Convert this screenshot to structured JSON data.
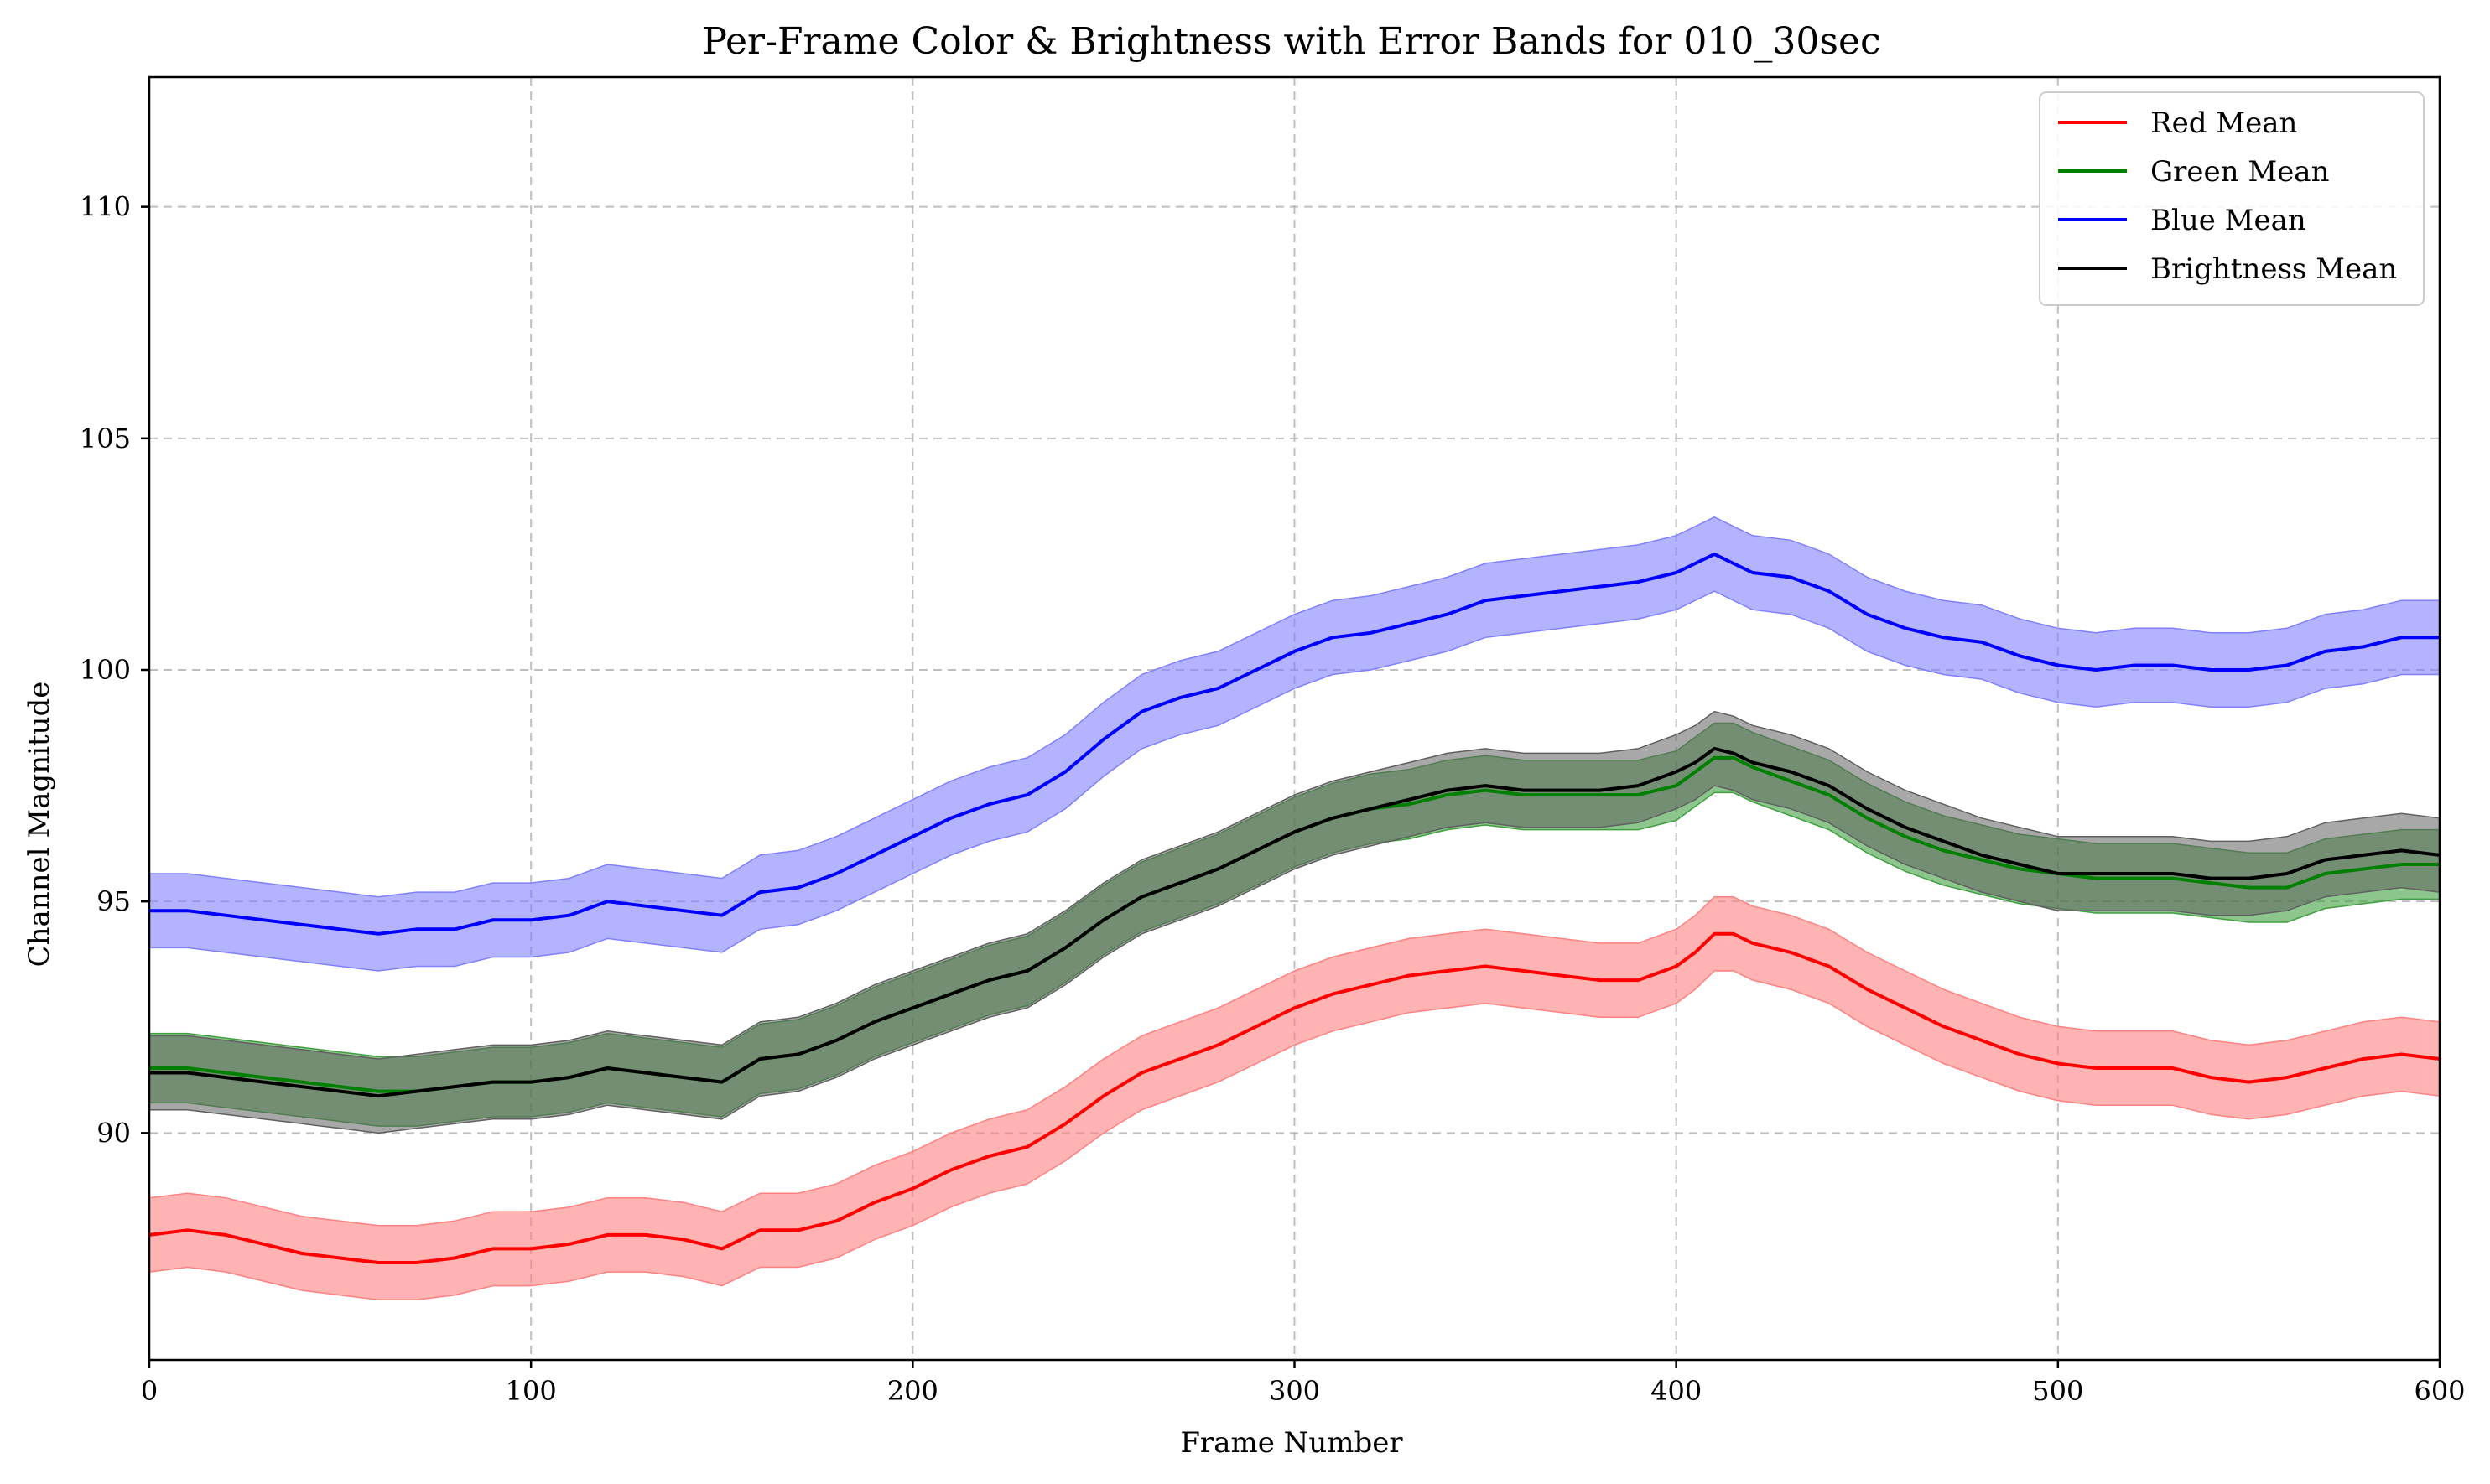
{
  "chart_data": {
    "type": "line",
    "title": "Per-Frame Color & Brightness with Error Bands for 010_30sec",
    "xlabel": "Frame Number",
    "ylabel": "Channel Magnitude",
    "xlim": [
      0,
      600
    ],
    "ylim": [
      85.1,
      112.8
    ],
    "x_ticks": [
      0,
      100,
      200,
      300,
      400,
      500,
      600
    ],
    "y_ticks": [
      90,
      95,
      100,
      105,
      110
    ],
    "grid": true,
    "legend_position": "top-right",
    "x": [
      0,
      10,
      20,
      30,
      40,
      50,
      60,
      70,
      80,
      90,
      100,
      110,
      120,
      130,
      140,
      150,
      160,
      170,
      180,
      190,
      200,
      210,
      220,
      230,
      240,
      250,
      260,
      270,
      280,
      290,
      300,
      310,
      320,
      330,
      340,
      350,
      360,
      370,
      380,
      390,
      400,
      405,
      410,
      415,
      420,
      430,
      440,
      450,
      460,
      470,
      480,
      490,
      500,
      510,
      520,
      530,
      540,
      550,
      560,
      570,
      580,
      590,
      600
    ],
    "series": [
      {
        "name": "Red Mean",
        "color": "#ff0000",
        "band_color": "#ff8080",
        "band_halfwidth": 0.8,
        "values": [
          87.8,
          87.9,
          87.8,
          87.6,
          87.4,
          87.3,
          87.2,
          87.2,
          87.3,
          87.5,
          87.5,
          87.6,
          87.8,
          87.8,
          87.7,
          87.5,
          87.9,
          87.9,
          88.1,
          88.5,
          88.8,
          89.2,
          89.5,
          89.7,
          90.2,
          90.8,
          91.3,
          91.6,
          91.9,
          92.3,
          92.7,
          93.0,
          93.2,
          93.4,
          93.5,
          93.6,
          93.5,
          93.4,
          93.3,
          93.3,
          93.6,
          93.9,
          94.3,
          94.3,
          94.1,
          93.9,
          93.6,
          93.1,
          92.7,
          92.3,
          92.0,
          91.7,
          91.5,
          91.4,
          91.4,
          91.4,
          91.2,
          91.1,
          91.2,
          91.4,
          91.6,
          91.7,
          91.6
        ]
      },
      {
        "name": "Green Mean",
        "color": "#008000",
        "band_color": "#40a040",
        "band_halfwidth": 0.75,
        "values": [
          91.4,
          91.4,
          91.3,
          91.2,
          91.1,
          91.0,
          90.9,
          90.9,
          91.0,
          91.1,
          91.1,
          91.2,
          91.4,
          91.3,
          91.2,
          91.1,
          91.6,
          91.7,
          92.0,
          92.4,
          92.7,
          93.0,
          93.3,
          93.5,
          94.0,
          94.6,
          95.1,
          95.4,
          95.7,
          96.1,
          96.5,
          96.8,
          97.0,
          97.1,
          97.3,
          97.4,
          97.3,
          97.3,
          97.3,
          97.3,
          97.5,
          97.8,
          98.1,
          98.1,
          97.9,
          97.6,
          97.3,
          96.8,
          96.4,
          96.1,
          95.9,
          95.7,
          95.6,
          95.5,
          95.5,
          95.5,
          95.4,
          95.3,
          95.3,
          95.6,
          95.7,
          95.8,
          95.8
        ]
      },
      {
        "name": "Blue Mean",
        "color": "#0000ff",
        "band_color": "#8080ff",
        "band_halfwidth": 0.8,
        "values": [
          94.8,
          94.8,
          94.7,
          94.6,
          94.5,
          94.4,
          94.3,
          94.4,
          94.4,
          94.6,
          94.6,
          94.7,
          95.0,
          94.9,
          94.8,
          94.7,
          95.2,
          95.3,
          95.6,
          96.0,
          96.4,
          96.8,
          97.1,
          97.3,
          97.8,
          98.5,
          99.1,
          99.4,
          99.6,
          100.0,
          100.4,
          100.7,
          100.8,
          101.0,
          101.2,
          101.5,
          101.6,
          101.7,
          101.8,
          101.9,
          102.1,
          102.3,
          102.5,
          102.3,
          102.1,
          102.0,
          101.7,
          101.2,
          100.9,
          100.7,
          100.6,
          100.3,
          100.1,
          100.0,
          100.1,
          100.1,
          100.0,
          100.0,
          100.1,
          100.4,
          100.5,
          100.7,
          100.7
        ]
      },
      {
        "name": "Brightness Mean",
        "color": "#000000",
        "band_color": "#606060",
        "band_halfwidth": 0.8,
        "values": [
          91.3,
          91.3,
          91.2,
          91.1,
          91.0,
          90.9,
          90.8,
          90.9,
          91.0,
          91.1,
          91.1,
          91.2,
          91.4,
          91.3,
          91.2,
          91.1,
          91.6,
          91.7,
          92.0,
          92.4,
          92.7,
          93.0,
          93.3,
          93.5,
          94.0,
          94.6,
          95.1,
          95.4,
          95.7,
          96.1,
          96.5,
          96.8,
          97.0,
          97.2,
          97.4,
          97.5,
          97.4,
          97.4,
          97.4,
          97.5,
          97.8,
          98.0,
          98.3,
          98.2,
          98.0,
          97.8,
          97.5,
          97.0,
          96.6,
          96.3,
          96.0,
          95.8,
          95.6,
          95.6,
          95.6,
          95.6,
          95.5,
          95.5,
          95.6,
          95.9,
          96.0,
          96.1,
          96.0
        ]
      }
    ]
  }
}
